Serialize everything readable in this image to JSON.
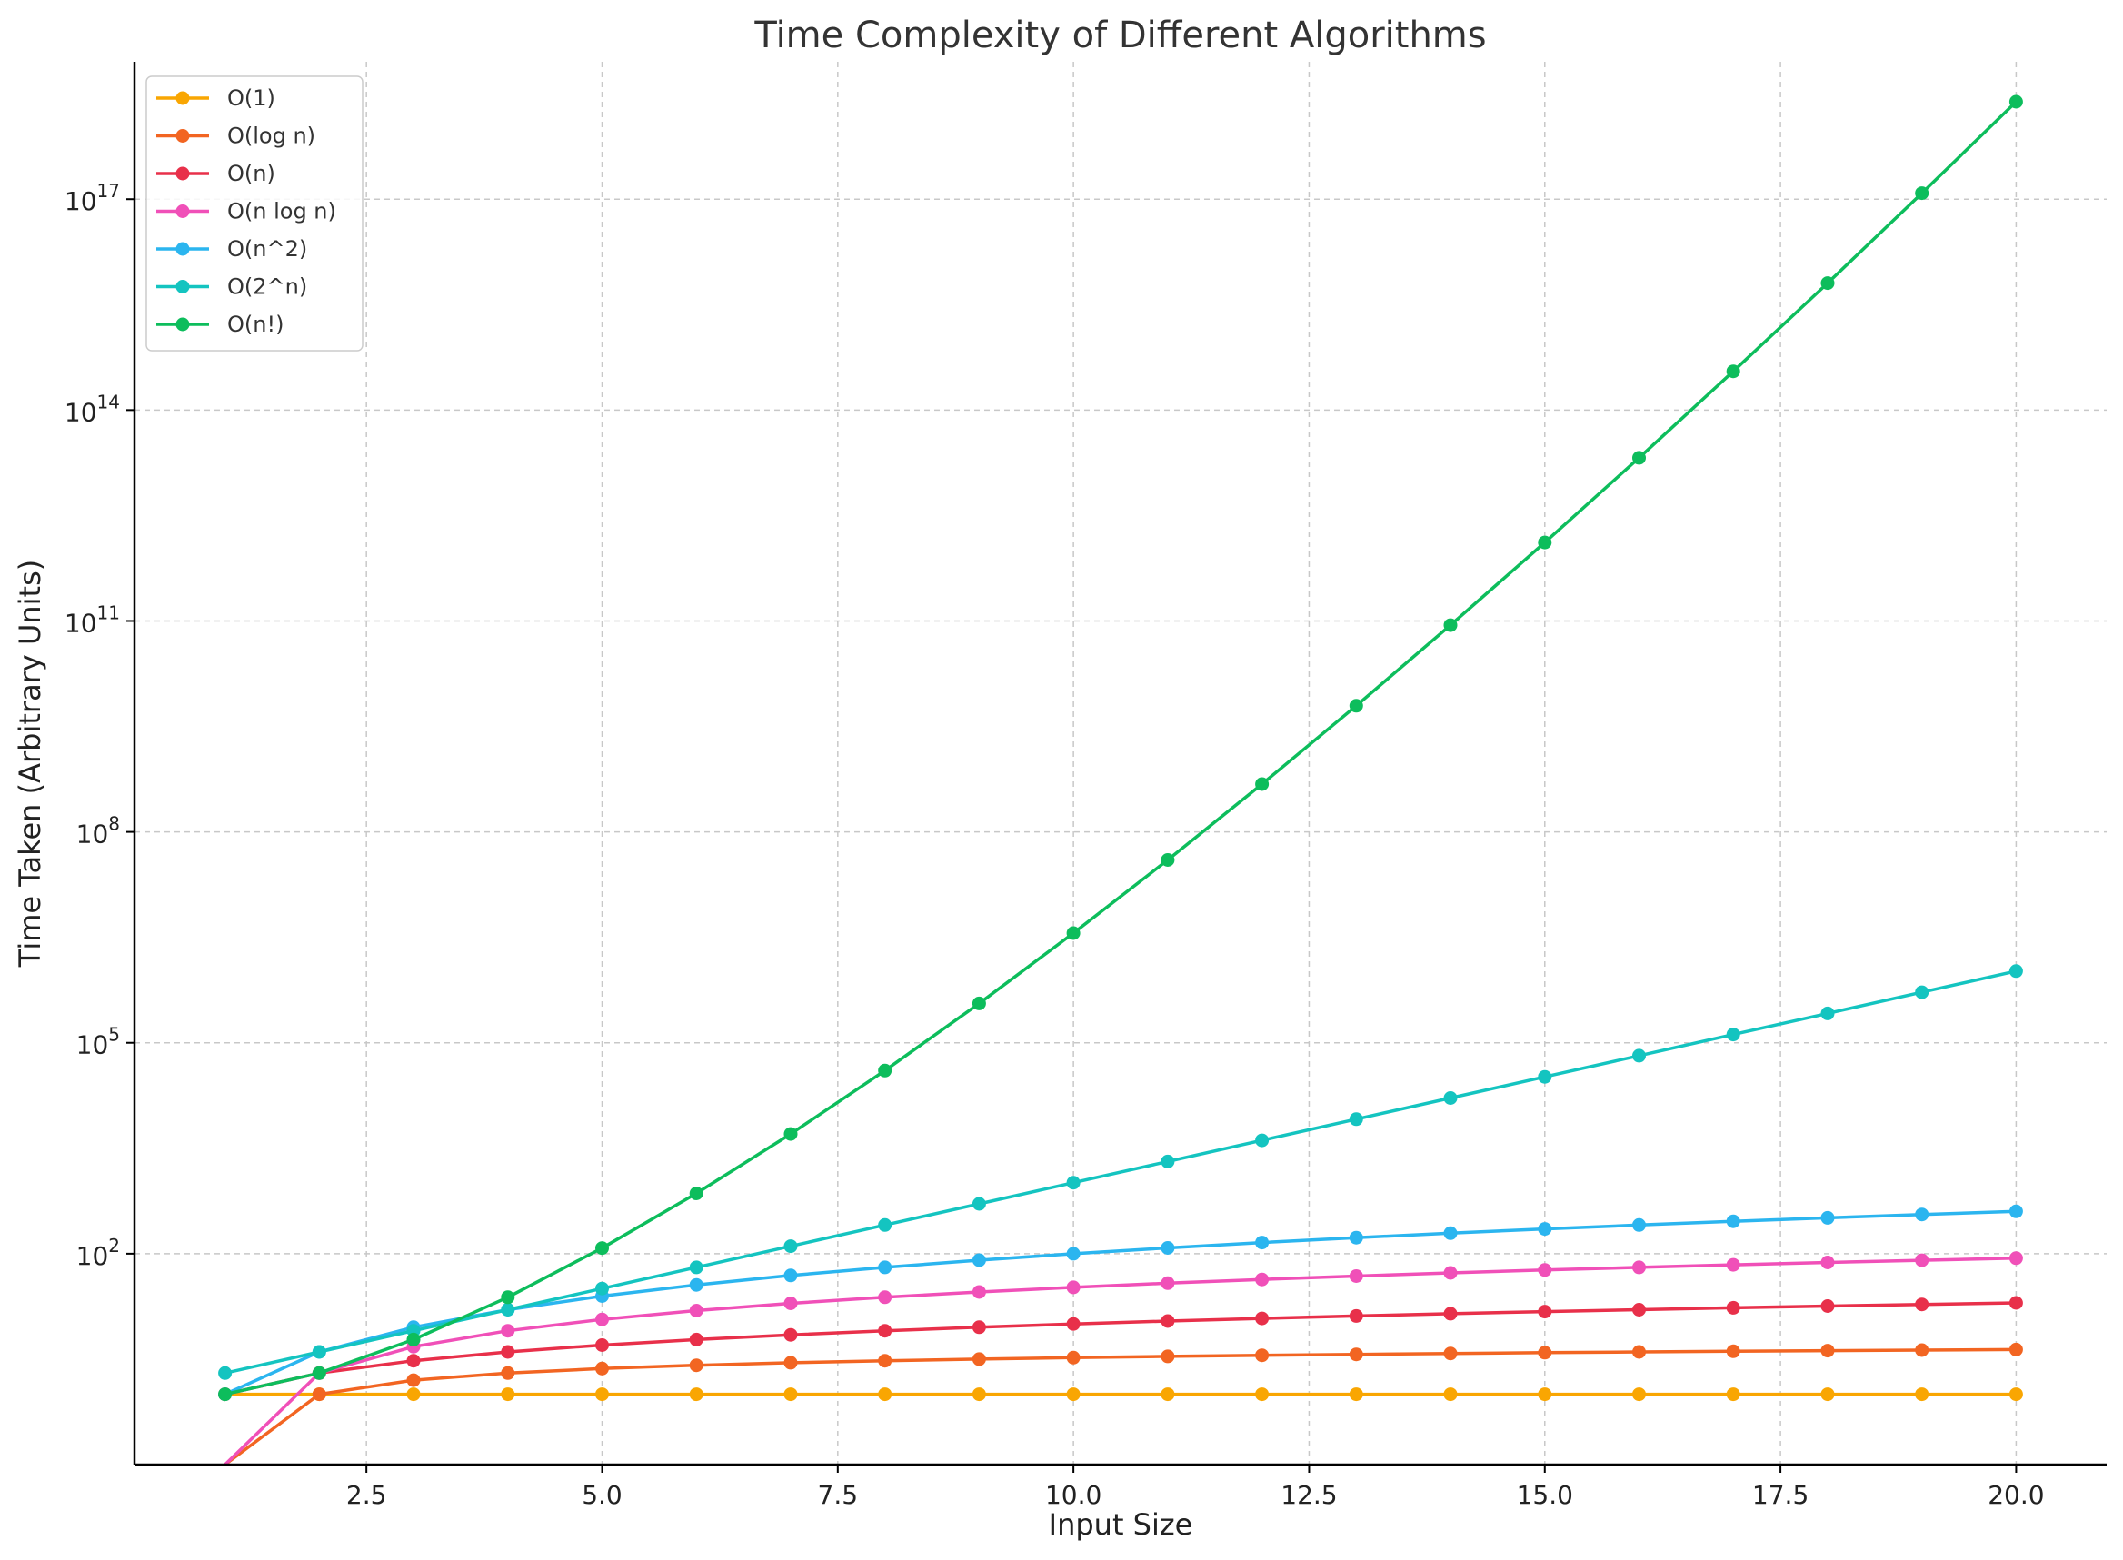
{
  "chart_data": {
    "type": "line",
    "title": "Time Complexity of Different Algorithms",
    "xlabel": "Input Size",
    "ylabel": "Time Taken (Arbitrary Units)",
    "xscale": "linear",
    "yscale": "log",
    "xlim": [
      0.04,
      20.96
    ],
    "ylim": [
      0.1,
      9e+18
    ],
    "grid": true,
    "legend_position": "top-left",
    "xticks": [
      2.5,
      5.0,
      7.5,
      10.0,
      12.5,
      15.0,
      17.5,
      20.0
    ],
    "xtick_labels": [
      "2.5",
      "5.0",
      "7.5",
      "10.0",
      "12.5",
      "15.0",
      "17.5",
      "20.0"
    ],
    "yticks": [
      100,
      100000,
      100000000,
      100000000000,
      100000000000000,
      100000000000000000
    ],
    "ytick_bases": [
      "10",
      "10",
      "10",
      "10",
      "10",
      "10"
    ],
    "ytick_exponents": [
      "2",
      "5",
      "8",
      "11",
      "14",
      "17"
    ],
    "x": [
      1,
      2,
      3,
      4,
      5,
      6,
      7,
      8,
      9,
      10,
      11,
      12,
      13,
      14,
      15,
      16,
      17,
      18,
      19,
      20
    ],
    "series": [
      {
        "name": "O(1)",
        "color": "#f9a602",
        "values": [
          1,
          1,
          1,
          1,
          1,
          1,
          1,
          1,
          1,
          1,
          1,
          1,
          1,
          1,
          1,
          1,
          1,
          1,
          1,
          1
        ]
      },
      {
        "name": "O(log n)",
        "color": "#f26522",
        "values": [
          0,
          1,
          1.585,
          2,
          2.322,
          2.585,
          2.807,
          3,
          3.17,
          3.322,
          3.459,
          3.585,
          3.7,
          3.807,
          3.907,
          4,
          4.087,
          4.17,
          4.248,
          4.322
        ]
      },
      {
        "name": "O(n)",
        "color": "#e8304a",
        "values": [
          1,
          2,
          3,
          4,
          5,
          6,
          7,
          8,
          9,
          10,
          11,
          12,
          13,
          14,
          15,
          16,
          17,
          18,
          19,
          20
        ]
      },
      {
        "name": "O(n log n)",
        "color": "#f050b8",
        "values": [
          0,
          2,
          4.755,
          8,
          11.61,
          15.51,
          19.65,
          24,
          28.53,
          33.22,
          38.05,
          43.02,
          48.11,
          53.3,
          58.6,
          64,
          69.49,
          75.06,
          80.71,
          86.44
        ]
      },
      {
        "name": "O(n^2)",
        "color": "#2bb5ef",
        "values": [
          1,
          4,
          9,
          16,
          25,
          36,
          49,
          64,
          81,
          100,
          121,
          144,
          169,
          196,
          225,
          256,
          289,
          324,
          361,
          400
        ]
      },
      {
        "name": "O(2^n)",
        "color": "#14c4c0",
        "values": [
          2,
          4,
          8,
          16,
          32,
          64,
          128,
          256,
          512,
          1024,
          2048,
          4096,
          8192,
          16384,
          32768,
          65536,
          131072,
          262144,
          524288,
          1048576
        ]
      },
      {
        "name": "O(n!)",
        "color": "#0dbd5c",
        "values": [
          1,
          2,
          6,
          24,
          120,
          720,
          5040,
          40320,
          362880,
          3628800,
          39916800,
          479001600,
          6227020800,
          87178291200,
          1307674368000,
          20922789888000,
          355687428096000,
          6402373705728000,
          121645100408832000,
          2432902008176640000
        ]
      }
    ]
  }
}
